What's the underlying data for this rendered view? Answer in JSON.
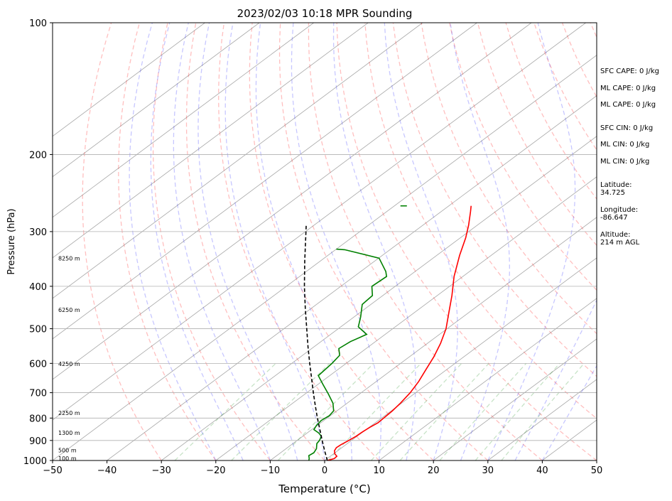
{
  "chart_data": {
    "type": "line",
    "diagram": "skew-T log-P",
    "title": "2023/02/03 10:18 MPR Sounding",
    "xlabel": "Temperature (°C)",
    "ylabel": "Pressure (hPa)",
    "xlim": [
      -50,
      50
    ],
    "ylim": [
      1000,
      100
    ],
    "y_scale": "log",
    "x_ticks": [
      -50,
      -40,
      -30,
      -20,
      -10,
      0,
      10,
      20,
      30,
      40,
      50
    ],
    "x_tick_labels": [
      "−50",
      "−40",
      "−30",
      "−20",
      "−10",
      "0",
      "10",
      "20",
      "30",
      "40",
      "50"
    ],
    "y_ticks": [
      100,
      200,
      300,
      400,
      500,
      600,
      700,
      800,
      900,
      1000
    ],
    "y_tick_labels": [
      "100",
      "200",
      "300",
      "400",
      "500",
      "600",
      "700",
      "800",
      "900",
      "1000"
    ],
    "grid": true,
    "series": [
      {
        "role": "temperature",
        "color": "#ff0000",
        "style": "solid",
        "points": [
          [
            1000,
            0.5
          ],
          [
            990,
            1.3
          ],
          [
            978,
            1.2
          ],
          [
            965,
            0.2
          ],
          [
            950,
            -0.6
          ],
          [
            935,
            -1.0
          ],
          [
            920,
            -0.9
          ],
          [
            900,
            -0.5
          ],
          [
            880,
            -0.2
          ],
          [
            860,
            -0.1
          ],
          [
            840,
            0.1
          ],
          [
            820,
            0.5
          ],
          [
            800,
            0.4
          ],
          [
            770,
            0.2
          ],
          [
            740,
            -0.2
          ],
          [
            700,
            -1.0
          ],
          [
            660,
            -2.2
          ],
          [
            620,
            -3.8
          ],
          [
            580,
            -5.5
          ],
          [
            540,
            -7.6
          ],
          [
            500,
            -10.2
          ],
          [
            460,
            -13.6
          ],
          [
            420,
            -17.3
          ],
          [
            380,
            -21.6
          ],
          [
            340,
            -25.8
          ],
          [
            310,
            -29.0
          ],
          [
            290,
            -31.6
          ],
          [
            270,
            -34.6
          ],
          [
            262,
            -35.9
          ]
        ]
      },
      {
        "role": "dewpoint",
        "color": "#008000",
        "style": "solid",
        "points": [
          [
            1000,
            -2.9
          ],
          [
            990,
            -3.3
          ],
          [
            975,
            -4.1
          ],
          [
            960,
            -3.9
          ],
          [
            940,
            -4.4
          ],
          [
            915,
            -5.6
          ],
          [
            900,
            -5.9
          ],
          [
            880,
            -6.6
          ],
          [
            865,
            -7.9
          ],
          [
            850,
            -9.6
          ],
          [
            830,
            -10.2
          ],
          [
            810,
            -10.5
          ],
          [
            790,
            -10.2
          ],
          [
            770,
            -10.6
          ],
          [
            740,
            -12.6
          ],
          [
            705,
            -15.7
          ],
          [
            670,
            -19.1
          ],
          [
            640,
            -22.1
          ],
          [
            600,
            -22.6
          ],
          [
            575,
            -23.2
          ],
          [
            555,
            -25.0
          ],
          [
            535,
            -24.6
          ],
          [
            515,
            -23.4
          ],
          [
            495,
            -26.8
          ],
          [
            470,
            -28.8
          ],
          [
            440,
            -31.6
          ],
          [
            420,
            -31.9
          ],
          [
            400,
            -34.3
          ],
          [
            380,
            -34.0
          ],
          [
            370,
            -35.4
          ],
          [
            345,
            -39.9
          ],
          [
            330,
            -48.3
          ],
          [
            329,
            -50.0
          ]
        ],
        "top_fragment": [
          [
            262,
            -48.9
          ],
          [
            262,
            -47.7
          ]
        ]
      },
      {
        "role": "parcel",
        "color": "#000000",
        "style": "dashed",
        "points": [
          [
            1000,
            0.5
          ],
          [
            950,
            -2.4
          ],
          [
            900,
            -5.4
          ],
          [
            850,
            -8.5
          ],
          [
            800,
            -11.8
          ],
          [
            750,
            -15.2
          ],
          [
            700,
            -18.8
          ],
          [
            650,
            -22.6
          ],
          [
            600,
            -26.7
          ],
          [
            550,
            -31.1
          ],
          [
            500,
            -35.8
          ],
          [
            450,
            -41.0
          ],
          [
            400,
            -46.7
          ],
          [
            350,
            -52.9
          ],
          [
            300,
            -59.9
          ],
          [
            291,
            -61.3
          ]
        ]
      }
    ],
    "height_labels": [
      {
        "p": 345,
        "text": "8250 m"
      },
      {
        "p": 453,
        "text": "6250 m"
      },
      {
        "p": 601,
        "text": "4250 m"
      },
      {
        "p": 779,
        "text": "2250 m"
      },
      {
        "p": 865,
        "text": "1300 m"
      },
      {
        "p": 948,
        "text": "500 m"
      },
      {
        "p": 988,
        "text": "100 m"
      }
    ],
    "background_lines": {
      "isotherms_color": "#808080",
      "dry_adiabats_color": "#ff0000",
      "moist_adiabats_color": "#0000ff",
      "mixing_ratio_color": "#008000"
    }
  },
  "side_panel": {
    "sfc_cape": "SFC CAPE: 0 J/kg",
    "ml_cape_1": "ML CAPE: 0 J/kg",
    "ml_cape_2": "ML CAPE: 0 J/kg",
    "sfc_cin": "SFC CIN: 0 J/kg",
    "ml_cin_1": "ML CIN: 0 J/kg",
    "ml_cin_2": "ML CIN: 0 J/kg",
    "latitude": "Latitude:\n34.725",
    "longitude": "Longitude:\n-86.647",
    "altitude": "Altitude:\n214 m AGL"
  }
}
